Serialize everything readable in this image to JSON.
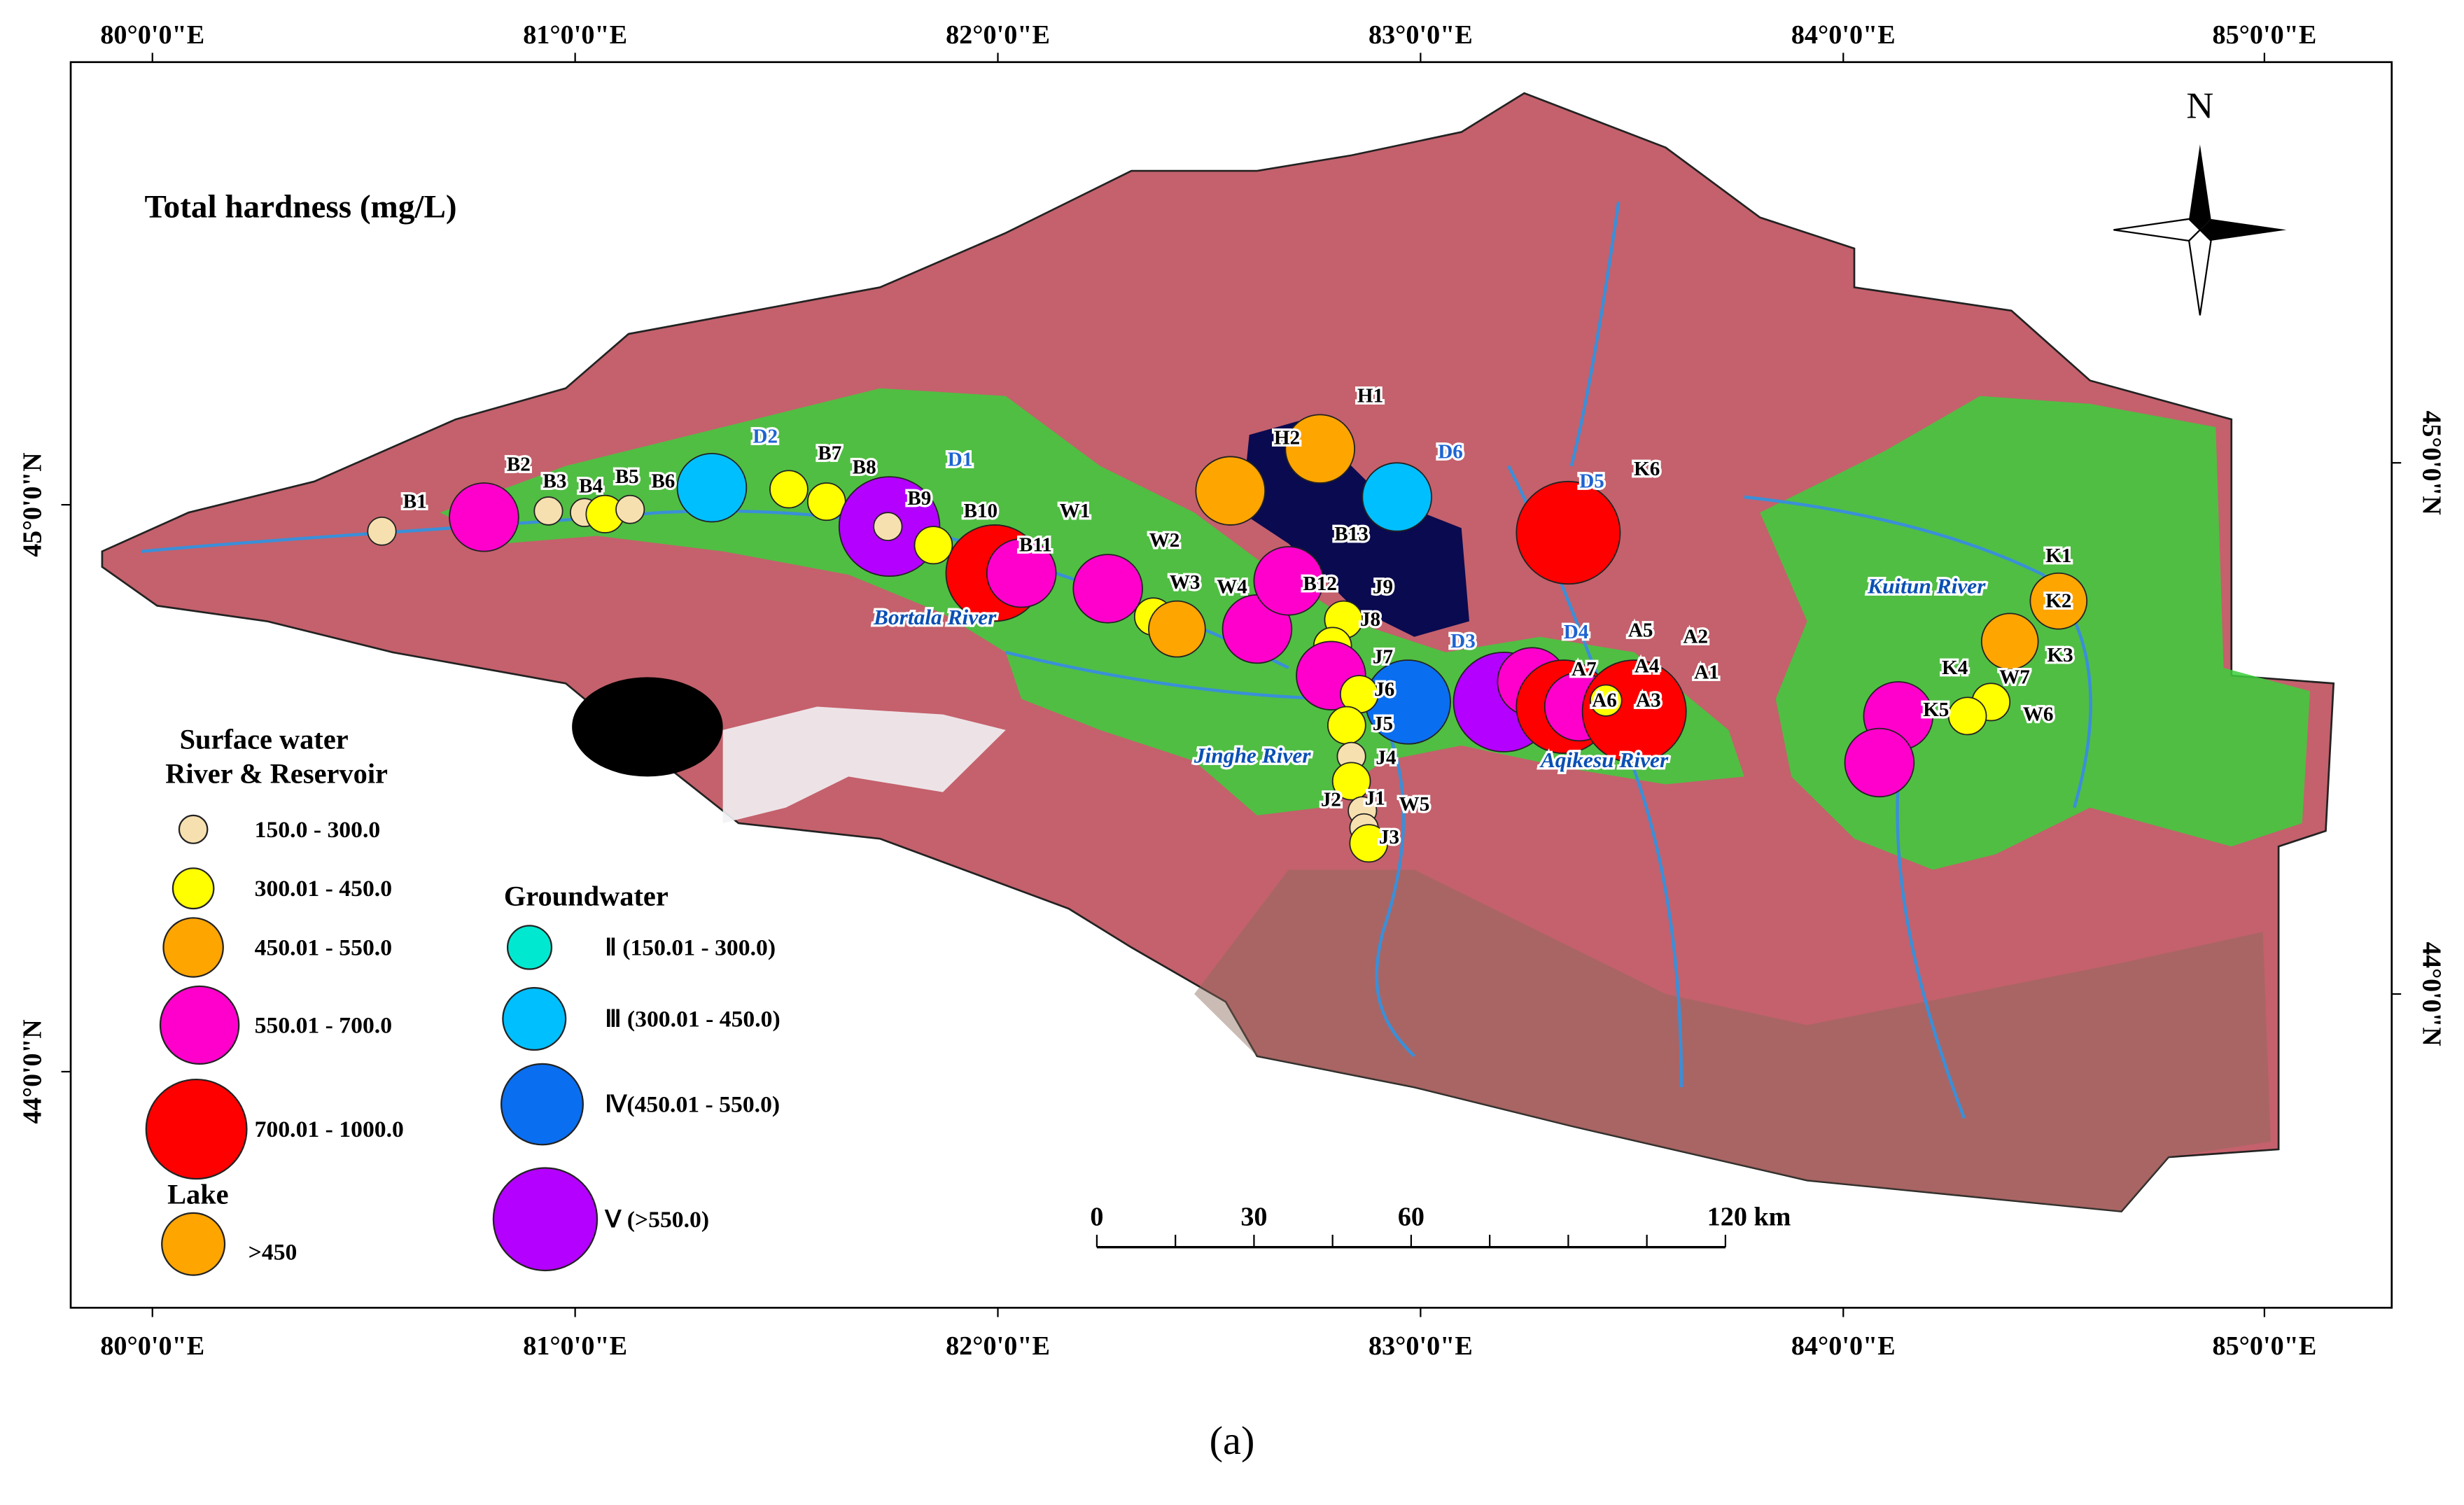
{
  "title": "Total hardness (mg/L)",
  "caption": "(a)",
  "north": "N",
  "longitude_labels": [
    "80°0'0\"E",
    "81°0'0\"E",
    "82°0'0\"E",
    "83°0'0\"E",
    "84°0'0\"E",
    "85°0'0\"E"
  ],
  "latitude_labels": [
    "45°0'0\"N",
    "44°0'0\"N"
  ],
  "rivers": [
    "Bortala River",
    "Jinghe River",
    "Aqikesu River",
    "Kuitun River"
  ],
  "scale_bar": [
    "0",
    "30",
    "60",
    "120 km"
  ],
  "legend": {
    "surface_title": [
      "Surface water",
      "River & Reservoir"
    ],
    "surface_classes": [
      "150.0 - 300.0",
      "300.01 - 450.0",
      "450.01 - 550.0",
      "550.01 - 700.0",
      "700.01 - 1000.0"
    ],
    "surface_colors": [
      "#f7e0b0",
      "#ffff00",
      "#ffa500",
      "#ff00cc",
      "#ff0000"
    ],
    "lake_title": "Lake",
    "lake_class": ">450",
    "lake_color": "#ffa500",
    "groundwater_title": "Groundwater",
    "groundwater_classes": [
      "Ⅱ (150.01 - 300.0)",
      "Ⅲ (300.01 - 450.0)",
      "Ⅳ(450.01 - 550.0)",
      "Ⅴ (>550.0)"
    ],
    "groundwater_colors": [
      "#00e8d0",
      "#00bfff",
      "#0a6ef0",
      "#b400ff"
    ]
  },
  "site_labels": [
    "B1",
    "B2",
    "B3",
    "B4",
    "B5",
    "B6",
    "B7",
    "B8",
    "B9",
    "B10",
    "B11",
    "B12",
    "B13",
    "W1",
    "W2",
    "W3",
    "W4",
    "W5",
    "W6",
    "W7",
    "J1",
    "J2",
    "J3",
    "J4",
    "J5",
    "J6",
    "J7",
    "J8",
    "J9",
    "A1",
    "A2",
    "A3",
    "A4",
    "A5",
    "A6",
    "A7",
    "K1",
    "K2",
    "K3",
    "K4",
    "K5",
    "K6",
    "D1",
    "D2",
    "D3",
    "D4",
    "D5",
    "D6",
    "H1",
    "H2"
  ]
}
